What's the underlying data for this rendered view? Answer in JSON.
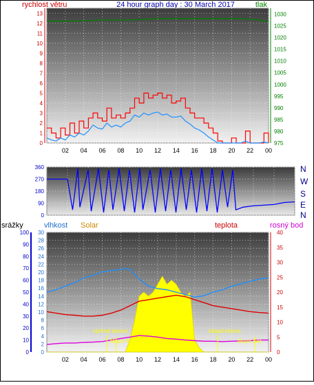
{
  "header": {
    "left_label": "rychlost větru",
    "title": "24 hour graph day : 30 March 2017",
    "right_label": "tlak"
  },
  "chart2_header": {
    "compass": [
      "N",
      "W",
      "S",
      "E",
      "N"
    ]
  },
  "chart3_header": {
    "precip_label": "srážky",
    "humidity_label": "vlhkost",
    "solar_label": "Solar",
    "temp_label": "teplota",
    "dew_label": "rosný bod"
  },
  "annotations": {
    "sunrise": "východ slunce",
    "sunset": "západ slunce",
    "moonrise": "Moon Rise",
    "moonset": "Moon Set"
  },
  "colors": {
    "wind": "#ff0000",
    "wind_avg": "#1e90ff",
    "pressure": "#008000",
    "direction": "#0000ff",
    "humidity": "#1e90ff",
    "temperature": "#dd0000",
    "dew": "#dd00dd",
    "solar": "#ffff00",
    "precip": "#0000ff",
    "axis_red": "#cc0000",
    "axis_green": "#008000",
    "axis_blue": "#0000cc",
    "axis_humidity": "#1e6fd0"
  },
  "chart_data": [
    {
      "type": "line",
      "id": "wind_pressure",
      "xticks": [
        "02",
        "04",
        "06",
        "08",
        "10",
        "12",
        "14",
        "16",
        "18",
        "20",
        "22",
        "00"
      ],
      "left_axis": {
        "ticks": [
          0,
          1,
          2,
          3,
          4,
          5,
          6,
          7,
          8,
          9,
          10,
          11,
          12,
          13
        ],
        "range": [
          0,
          13.5
        ]
      },
      "right_axis": {
        "ticks": [
          975,
          980,
          985,
          990,
          995,
          1000,
          1005,
          1010,
          1015,
          1020,
          1025,
          1030
        ],
        "range": [
          975,
          1032.5
        ]
      },
      "series": [
        {
          "name": "rychlost větru",
          "x": [
            0,
            0.5,
            1,
            1.5,
            2,
            2.5,
            3,
            3.5,
            4,
            4.5,
            5,
            5.5,
            6,
            6.5,
            7,
            7.5,
            8,
            8.5,
            9,
            9.5,
            10,
            10.5,
            11,
            11.5,
            12,
            12.5,
            13,
            13.5,
            14,
            14.5,
            15,
            15.5,
            16,
            16.5,
            17,
            17.5,
            18,
            18.5,
            19,
            19.5,
            20,
            20.5,
            21,
            21.5,
            22,
            22.5,
            23,
            23.5,
            24
          ],
          "y": [
            1.5,
            1.0,
            0.5,
            1.5,
            0.8,
            2.0,
            1.0,
            2.2,
            1.5,
            2.5,
            3.0,
            2.5,
            2.2,
            3.5,
            2.5,
            2.8,
            2.5,
            3.0,
            3.5,
            4.5,
            4.0,
            5.0,
            4.5,
            4.8,
            5.0,
            4.5,
            4.8,
            4.0,
            4.2,
            4.5,
            3.5,
            3.0,
            2.5,
            2.5,
            2.0,
            1.5,
            1.0,
            0.2,
            0.0,
            0.0,
            0.5,
            0.0,
            0.0,
            1.2,
            0.0,
            0.0,
            0.0,
            1.0,
            0.0
          ]
        },
        {
          "name": "",
          "x": [
            0,
            0.5,
            1,
            1.5,
            2,
            2.5,
            3,
            3.5,
            4,
            4.5,
            5,
            5.5,
            6,
            6.5,
            7,
            7.5,
            8,
            8.5,
            9,
            9.5,
            10,
            10.5,
            11,
            11.5,
            12,
            12.5,
            13,
            13.5,
            14,
            14.5,
            15,
            15.5,
            16,
            16.5,
            17,
            17.5,
            18,
            18.5,
            19,
            19.5,
            20,
            20.5,
            21,
            21.5,
            22,
            22.5,
            23,
            23.5,
            24
          ],
          "y": [
            0.5,
            0.3,
            0.2,
            0.5,
            0.3,
            0.8,
            0.6,
            1.0,
            0.8,
            1.2,
            1.8,
            1.5,
            1.4,
            2.0,
            1.6,
            1.8,
            1.6,
            2.0,
            2.2,
            2.8,
            2.6,
            3.0,
            2.8,
            3.0,
            3.1,
            2.8,
            2.9,
            2.6,
            2.6,
            2.7,
            2.2,
            1.9,
            1.5,
            1.3,
            1.0,
            0.6,
            0.3,
            0.0,
            0.0,
            0.0,
            0.0,
            0.0,
            0.0,
            0.2,
            0.0,
            0.0,
            0.0,
            0.1,
            0.0
          ]
        },
        {
          "name": "tlak",
          "x": [
            0,
            3,
            6,
            9,
            12,
            15,
            18,
            21,
            22,
            23,
            23.5,
            24
          ],
          "y": [
            1027,
            1027,
            1027.5,
            1027.5,
            1028,
            1028,
            1028,
            1028,
            1027.8,
            1027.5,
            1027,
            1027
          ]
        }
      ]
    },
    {
      "type": "scatter",
      "id": "wind_direction",
      "xticks": [
        "02",
        "04",
        "06",
        "08",
        "10",
        "12",
        "14",
        "16",
        "18",
        "20",
        "22",
        "00"
      ],
      "left_axis": {
        "ticks": [
          0,
          90,
          180,
          270,
          360
        ],
        "range": [
          0,
          360
        ]
      },
      "series": [
        {
          "name": "",
          "x": [
            0,
            1,
            2,
            2.5,
            3,
            3.2,
            4,
            4.3,
            5,
            5.5,
            6,
            6.4,
            7,
            7.5,
            8,
            8.5,
            9,
            9.3,
            10,
            10.5,
            11,
            11.5,
            12,
            12.5,
            13,
            13.5,
            14,
            14.5,
            15,
            15.5,
            16,
            16.5,
            17,
            17.5,
            18,
            18.3,
            19,
            20,
            21,
            22,
            23,
            24
          ],
          "y": [
            270,
            270,
            270,
            40,
            350,
            60,
            340,
            30,
            350,
            20,
            340,
            40,
            350,
            30,
            340,
            20,
            350,
            40,
            340,
            20,
            350,
            30,
            340,
            20,
            350,
            40,
            340,
            20,
            350,
            30,
            350,
            20,
            340,
            60,
            340,
            40,
            60,
            70,
            75,
            80,
            95,
            100
          ]
        }
      ]
    },
    {
      "type": "line",
      "id": "temp_humidity_solar",
      "xticks": [
        "02",
        "04",
        "06",
        "08",
        "10",
        "12",
        "14",
        "16",
        "18",
        "20",
        "22",
        "00"
      ],
      "precip_axis": {
        "ticks": [
          0,
          10,
          20,
          30,
          40,
          50,
          60,
          70,
          80,
          90,
          100
        ],
        "range": [
          0,
          100
        ]
      },
      "humidity_axis": {
        "ticks": [
          0,
          2,
          4,
          6,
          8,
          10,
          12,
          14,
          16,
          18,
          20,
          22,
          24,
          26,
          28,
          30
        ],
        "range": [
          0,
          30
        ]
      },
      "temp_axis": {
        "ticks": [
          0,
          5,
          10,
          15,
          20,
          25,
          30,
          35,
          40
        ],
        "range": [
          0,
          40
        ]
      },
      "series": [
        {
          "name": "vlhkost",
          "x": [
            0,
            1,
            2,
            3,
            4,
            5,
            6,
            7,
            8,
            8.5,
            9,
            10,
            11,
            12,
            13,
            14,
            15,
            16,
            17,
            18,
            19,
            20,
            21,
            22,
            23,
            24
          ],
          "y": [
            50,
            52,
            55,
            58,
            62,
            64,
            67,
            68,
            69,
            70,
            69,
            61,
            55,
            53,
            52,
            50,
            48,
            46,
            47,
            50,
            52,
            55,
            57,
            59,
            61,
            62
          ]
        },
        {
          "name": "teplota",
          "x": [
            0,
            1,
            2,
            3,
            4,
            5,
            6,
            7,
            8,
            9,
            10,
            11,
            12,
            13,
            14,
            15,
            16,
            17,
            18,
            19,
            20,
            21,
            22,
            23,
            24
          ],
          "y": [
            13.5,
            13.0,
            12.5,
            12.3,
            12.0,
            12.0,
            12.3,
            13.0,
            14.0,
            15.5,
            17.0,
            17.5,
            18.0,
            18.5,
            19.0,
            18.5,
            17.5,
            16.5,
            15.5,
            15.0,
            14.5,
            14.0,
            13.5,
            13.2,
            13.0
          ]
        },
        {
          "name": "rosný bod",
          "x": [
            0,
            1,
            2,
            3,
            4,
            5,
            6,
            7,
            8,
            9,
            10,
            11,
            12,
            13,
            14,
            15,
            16,
            17,
            18,
            19,
            20,
            21,
            22,
            23,
            24
          ],
          "y": [
            2.5,
            2.8,
            3.0,
            3.0,
            3.2,
            3.3,
            3.5,
            4.0,
            4.5,
            5.0,
            5.5,
            5.3,
            5.0,
            4.5,
            4.3,
            4.0,
            3.8,
            3.6,
            3.6,
            3.5,
            3.6,
            3.7,
            3.8,
            4.0,
            4.0
          ]
        },
        {
          "name": "Solar",
          "x": [
            0,
            8.5,
            9,
            9.5,
            10,
            10.5,
            11,
            11.5,
            12,
            12.5,
            13,
            13.5,
            14,
            14.5,
            15,
            15.5,
            16,
            16.5,
            17,
            17.5,
            18,
            24
          ],
          "y": [
            0,
            0,
            3,
            8,
            14,
            15,
            14,
            15,
            17,
            19,
            17,
            18,
            17,
            15,
            14,
            15,
            3,
            1,
            0,
            0,
            0,
            0
          ]
        }
      ],
      "events": {
        "sunrise": 6.5,
        "sunset": 18.5,
        "moonrise": 7.5,
        "moonset": 22.5
      }
    }
  ]
}
